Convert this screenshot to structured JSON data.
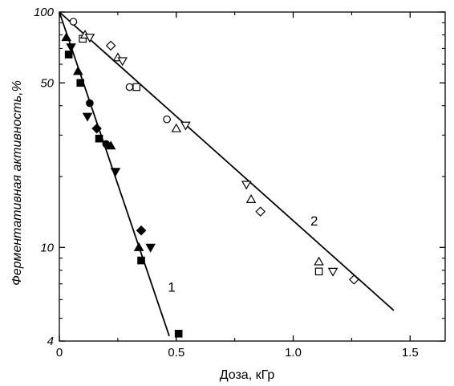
{
  "chart_data": {
    "type": "scatter",
    "title": "",
    "xlabel": "Доза, кГр",
    "ylabel": "Ферментативная активность,%",
    "x_scale": "linear",
    "y_scale": "log",
    "xlim": [
      0,
      1.65
    ],
    "ylim": [
      4,
      100
    ],
    "x_ticks": [
      {
        "value": 0,
        "label": "0"
      },
      {
        "value": 0.5,
        "label": "0.5"
      },
      {
        "value": 1.0,
        "label": "1.0"
      },
      {
        "value": 1.5,
        "label": "1.5"
      }
    ],
    "y_ticks": [
      {
        "value": 100,
        "label": "100"
      },
      {
        "value": 50,
        "label": "50"
      },
      {
        "value": 10,
        "label": "10"
      },
      {
        "value": 4,
        "label": "4"
      }
    ],
    "grid": false,
    "lines": [
      {
        "label": "1",
        "x": [
          0,
          0.47
        ],
        "y": [
          100,
          4.2
        ],
        "label_x": 0.48,
        "label_y": 6.8
      },
      {
        "label": "2",
        "x": [
          0,
          1.43
        ],
        "y": [
          100,
          5.4
        ],
        "label_x": 1.09,
        "label_y": 13
      }
    ],
    "series": [
      {
        "marker": "filled-triangle-up",
        "points": [
          [
            0.03,
            78
          ],
          [
            0.08,
            56
          ],
          [
            0.22,
            27
          ],
          [
            0.34,
            10
          ]
        ]
      },
      {
        "marker": "filled-triangle-down",
        "points": [
          [
            0.05,
            71
          ],
          [
            0.12,
            36
          ],
          [
            0.24,
            21
          ],
          [
            0.39,
            10
          ]
        ]
      },
      {
        "marker": "filled-square",
        "points": [
          [
            0.04,
            66
          ],
          [
            0.09,
            50
          ],
          [
            0.17,
            29
          ],
          [
            0.35,
            8.8
          ],
          [
            0.51,
            4.3
          ]
        ]
      },
      {
        "marker": "filled-circle",
        "points": [
          [
            0.13,
            41
          ],
          [
            0.2,
            27.5
          ]
        ]
      },
      {
        "marker": "filled-diamond",
        "points": [
          [
            0.16,
            32
          ],
          [
            0.35,
            11.8
          ]
        ]
      },
      {
        "marker": "open-circle",
        "points": [
          [
            0.06,
            91
          ],
          [
            0.3,
            48
          ],
          [
            0.46,
            35
          ]
        ]
      },
      {
        "marker": "open-square",
        "points": [
          [
            0.1,
            77
          ],
          [
            0.33,
            48
          ],
          [
            1.11,
            7.9
          ]
        ]
      },
      {
        "marker": "open-triangle-up",
        "points": [
          [
            0.11,
            80
          ],
          [
            0.25,
            64
          ],
          [
            0.5,
            32
          ],
          [
            0.82,
            16
          ],
          [
            1.11,
            8.7
          ]
        ]
      },
      {
        "marker": "open-triangle-down",
        "points": [
          [
            0.13,
            78
          ],
          [
            0.27,
            62
          ],
          [
            0.54,
            33
          ],
          [
            0.8,
            18.5
          ],
          [
            1.17,
            7.9
          ]
        ]
      },
      {
        "marker": "open-diamond",
        "points": [
          [
            0.22,
            72
          ],
          [
            0.86,
            14.2
          ],
          [
            1.26,
            7.3
          ]
        ]
      }
    ]
  }
}
